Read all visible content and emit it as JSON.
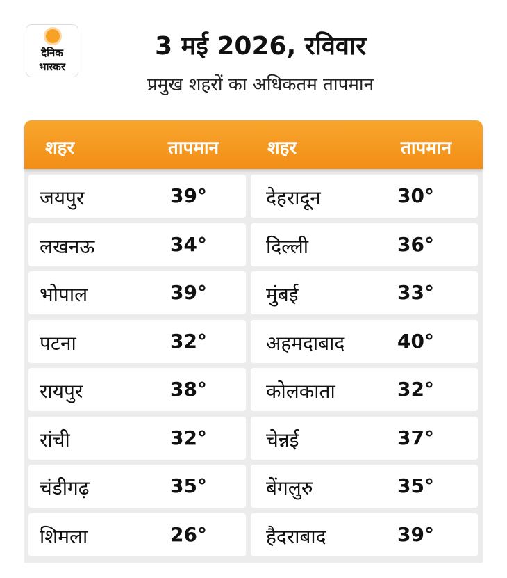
{
  "logo": {
    "line1": "दैनिक",
    "line2": "भास्कर"
  },
  "header": {
    "title": "3 मई 2026, रविवार",
    "subtitle": "प्रमुख शहरों का अधिकतम तापमान"
  },
  "table": {
    "columns": [
      "शहर",
      "तापमान",
      "शहर",
      "तापमान"
    ],
    "rows": [
      [
        "जयपुर",
        "39°",
        "देहरादून",
        "30°"
      ],
      [
        "लखनऊ",
        "34°",
        "दिल्ली",
        "36°"
      ],
      [
        "भोपाल",
        "39°",
        "मुंबई",
        "33°"
      ],
      [
        "पटना",
        "32°",
        "अहमदाबाद",
        "40°"
      ],
      [
        "रायपुर",
        "38°",
        "कोलकाता",
        "32°"
      ],
      [
        "रांची",
        "32°",
        "चेन्नई",
        "37°"
      ],
      [
        "चंडीगढ़",
        "35°",
        "बेंगलुरु",
        "35°"
      ],
      [
        "शिमला",
        "26°",
        "हैदराबाद",
        "39°"
      ]
    ]
  }
}
